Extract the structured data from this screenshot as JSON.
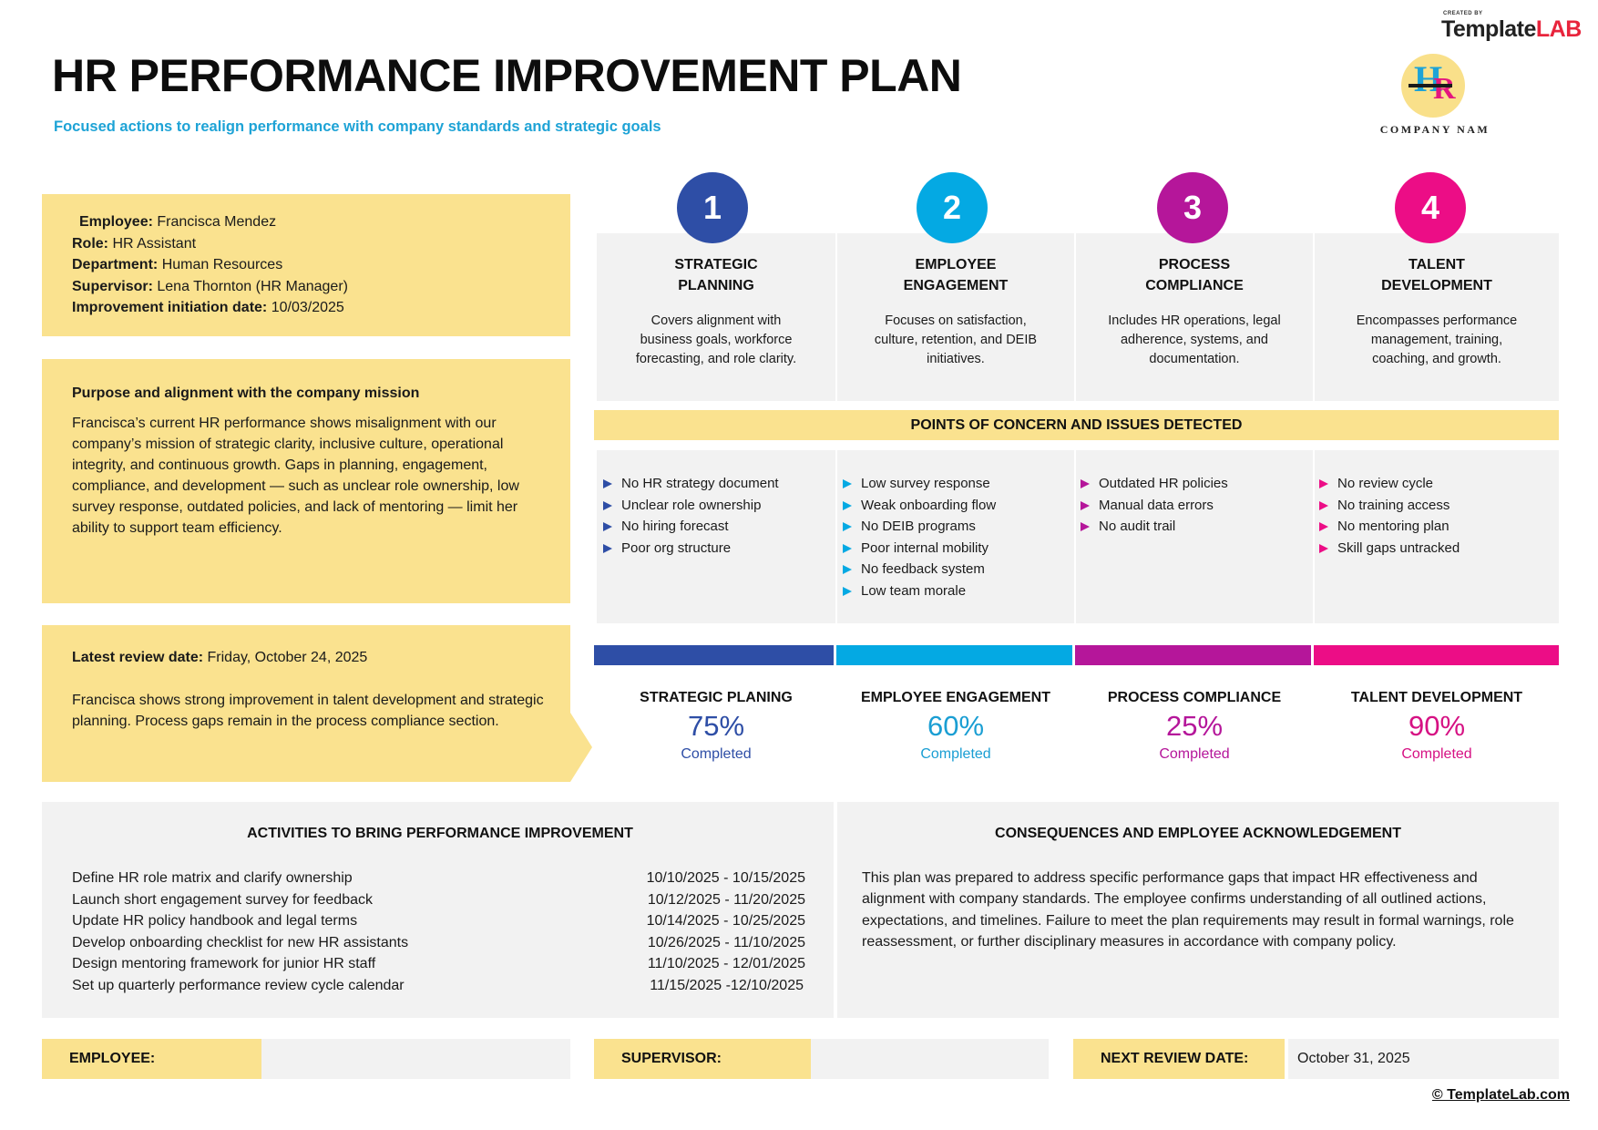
{
  "header": {
    "title": "HR PERFORMANCE IMPROVEMENT PLAN",
    "subtitle": "Focused actions to realign performance with company standards and strategic goals",
    "brand_small": "CREATED BY",
    "brand_part1": "Template",
    "brand_part2": "LAB",
    "logo_letters": [
      "H",
      "R"
    ],
    "company_name": "COMPANY NAM"
  },
  "employee_info": [
    {
      "label": "Employee:",
      "value": "Francisca Mendez"
    },
    {
      "label": "Role:",
      "value": "HR Assistant"
    },
    {
      "label": "Department:",
      "value": "Human Resources"
    },
    {
      "label": "Supervisor:",
      "value": "Lena Thornton (HR Manager)"
    },
    {
      "label": "Improvement initiation date:",
      "value": "10/03/2025"
    }
  ],
  "purpose": {
    "heading": "Purpose and alignment with the company mission",
    "text": "Francisca’s current HR performance shows misalignment with our company’s mission of strategic clarity, inclusive culture, operational integrity, and continuous growth. Gaps in planning, engagement, compliance, and development — such as unclear role ownership, low survey response, outdated policies, and lack of mentoring — limit her ability to support team efficiency."
  },
  "review": {
    "label": "Latest review date:",
    "date": "Friday, October 24, 2025",
    "text": "Francisca shows strong improvement in talent development and strategic planning. Process gaps remain in the process compliance section."
  },
  "areas": [
    {
      "number": "1",
      "title_line1": "STRATEGIC",
      "title_line2": "PLANNING",
      "desc": "Covers alignment with business goals, workforce forecasting, and role clarity.",
      "color": "#2e4ea6"
    },
    {
      "number": "2",
      "title_line1": "EMPLOYEE",
      "title_line2": "ENGAGEMENT",
      "desc": "Focuses on satisfaction, culture, retention, and DEIB initiatives.",
      "color": "#04a9e3"
    },
    {
      "number": "3",
      "title_line1": "PROCESS",
      "title_line2": "COMPLIANCE",
      "desc": "Includes HR operations, legal adherence, systems, and documentation.",
      "color": "#b5169a"
    },
    {
      "number": "4",
      "title_line1": "TALENT",
      "title_line2": "DEVELOPMENT",
      "desc": "Encompasses performance management, training, coaching, and growth.",
      "color": "#ec0d86"
    }
  ],
  "concerns": {
    "heading": "POINTS OF CONCERN AND ISSUES DETECTED",
    "columns": [
      [
        "No HR strategy document",
        "Unclear role ownership",
        "No hiring forecast",
        "Poor org structure"
      ],
      [
        "Low survey response",
        "Weak onboarding flow",
        "No DEIB programs",
        "Poor internal mobility",
        "No feedback system",
        "Low team morale"
      ],
      [
        "Outdated HR policies",
        "Manual data errors",
        "No audit trail"
      ],
      [
        "No review cycle",
        "No training access",
        "No mentoring plan",
        "Skill gaps untracked"
      ]
    ]
  },
  "progress": [
    {
      "title": "STRATEGIC PLANING",
      "value": "75%",
      "label": "Completed",
      "color": "#2e4ea6"
    },
    {
      "title": "EMPLOYEE ENGAGEMENT",
      "value": "60%",
      "label": "Completed",
      "color": "#1a9ed3"
    },
    {
      "title": "PROCESS COMPLIANCE",
      "value": "25%",
      "label": "Completed",
      "color": "#b5169a"
    },
    {
      "title": "TALENT DEVELOPMENT",
      "value": "90%",
      "label": "Completed",
      "color": "#d61183"
    }
  ],
  "activities": {
    "heading": "ACTIVITIES TO BRING PERFORMANCE IMPROVEMENT",
    "rows": [
      {
        "task": "Define HR role matrix and clarify ownership",
        "dates": "10/10/2025 - 10/15/2025"
      },
      {
        "task": "Launch short engagement survey for feedback",
        "dates": "10/12/2025 - 11/20/2025"
      },
      {
        "task": "Update HR policy handbook and legal terms",
        "dates": "10/14/2025 - 10/25/2025"
      },
      {
        "task": "Develop onboarding checklist for new HR assistants",
        "dates": "10/26/2025 - 11/10/2025"
      },
      {
        "task": "Design mentoring framework for junior HR staff",
        "dates": "11/10/2025 - 12/01/2025"
      },
      {
        "task": "Set up quarterly performance review cycle calendar",
        "dates": "11/15/2025 -12/10/2025"
      }
    ]
  },
  "consequences": {
    "heading": "CONSEQUENCES AND EMPLOYEE ACKNOWLEDGEMENT",
    "text": "This plan was prepared to address specific performance gaps that impact HR effectiveness and alignment with company standards. The employee confirms understanding of all outlined actions, expectations, and timelines. Failure to meet the plan requirements may result in formal warnings, role reassessment, or further disciplinary measures in accordance with company policy."
  },
  "signatures": {
    "employee_label": "EMPLOYEE:",
    "employee_value": "",
    "supervisor_label": "SUPERVISOR:",
    "supervisor_value": "",
    "next_review_label": "NEXT REVIEW DATE:",
    "next_review_value": "October 31, 2025"
  },
  "footer": {
    "copyright": "© TemplateLab.com"
  }
}
